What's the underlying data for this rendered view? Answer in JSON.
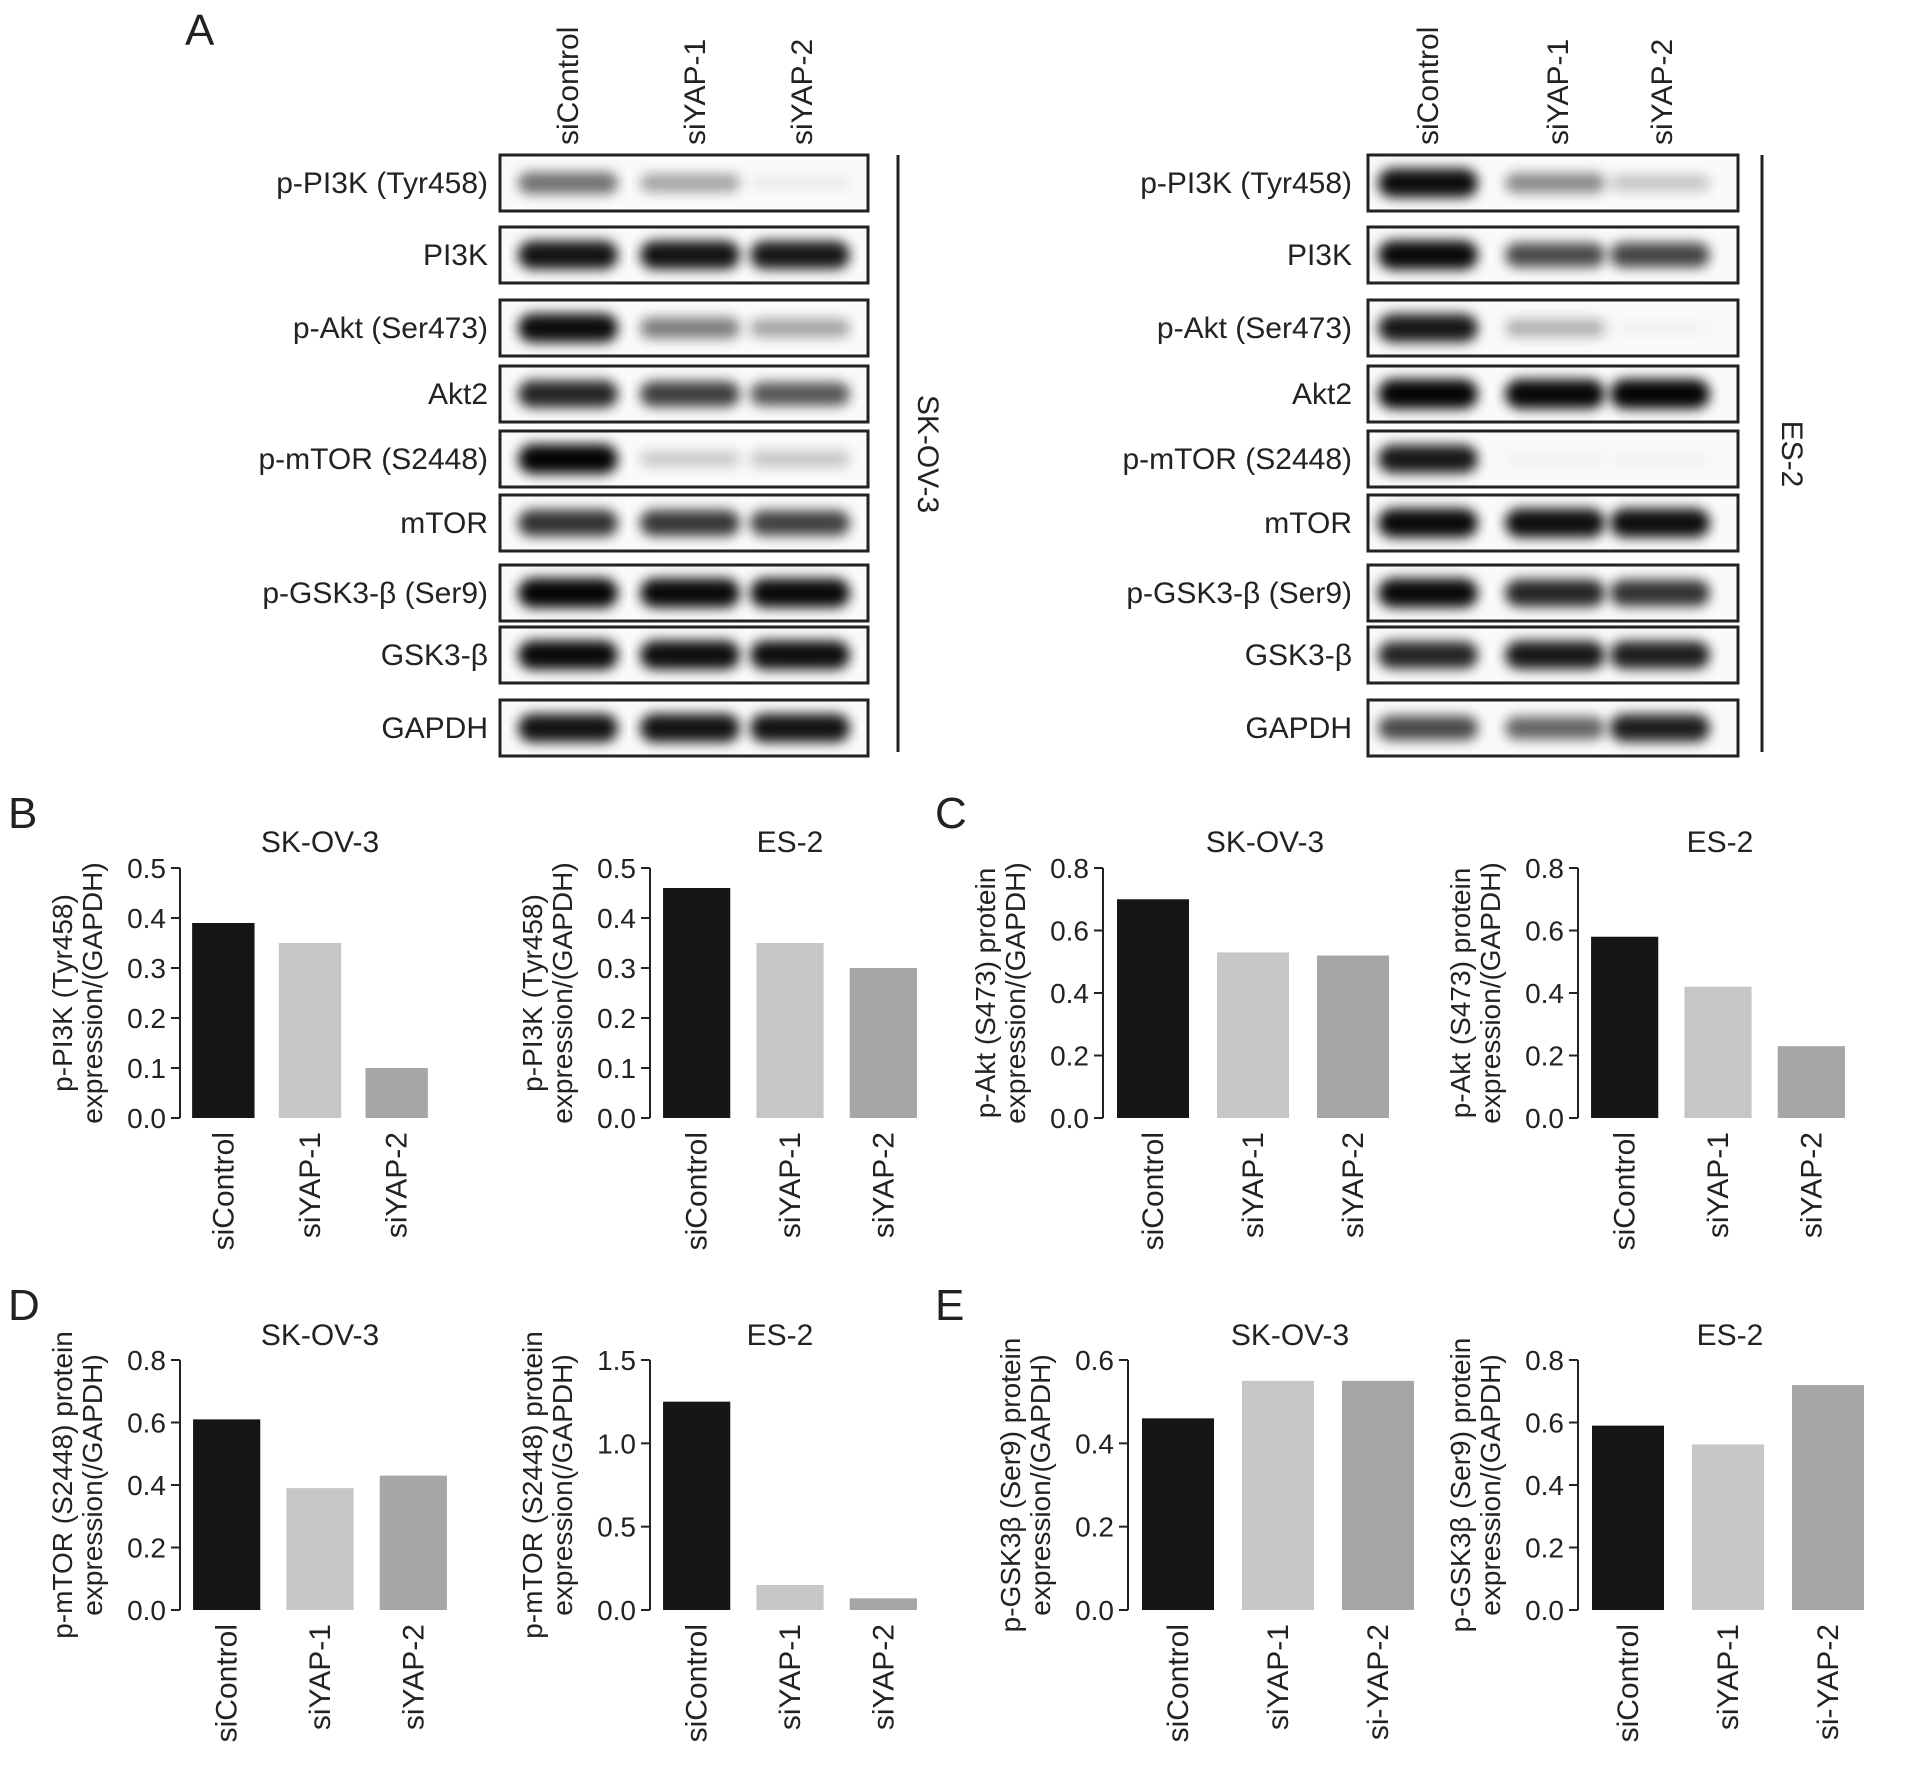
{
  "panel_letters": [
    "A",
    "B",
    "C",
    "D",
    "E"
  ],
  "blots": [
    {
      "cell_line": "SK-OV-3",
      "lanes": [
        "siControl",
        "siYAP-1",
        "siYAP-2"
      ],
      "rows": [
        "p-PI3K (Tyr458)",
        "PI3K",
        "p-Akt (Ser473)",
        "Akt2",
        "p-mTOR (S2448)",
        "mTOR",
        "p-GSK3-β (Ser9)",
        "GSK3-β",
        "GAPDH"
      ],
      "intensity": [
        [
          0.55,
          0.35,
          0.06
        ],
        [
          0.92,
          0.92,
          0.9
        ],
        [
          0.95,
          0.5,
          0.35
        ],
        [
          0.85,
          0.75,
          0.65
        ],
        [
          0.98,
          0.2,
          0.22
        ],
        [
          0.8,
          0.78,
          0.74
        ],
        [
          0.98,
          0.96,
          0.96
        ],
        [
          0.96,
          0.94,
          0.94
        ],
        [
          0.92,
          0.92,
          0.92
        ]
      ]
    },
    {
      "cell_line": "ES-2",
      "lanes": [
        "siControl",
        "siYAP-1",
        "siYAP-2"
      ],
      "rows": [
        "p-PI3K (Tyr458)",
        "PI3K",
        "p-Akt (Ser473)",
        "Akt2",
        "p-mTOR (S2448)",
        "mTOR",
        "p-GSK3-β (Ser9)",
        "GSK3-β",
        "GAPDH"
      ],
      "intensity": [
        [
          0.95,
          0.45,
          0.22
        ],
        [
          0.96,
          0.7,
          0.72
        ],
        [
          0.9,
          0.3,
          0.03
        ],
        [
          0.98,
          0.97,
          0.98
        ],
        [
          0.9,
          0.04,
          0.03
        ],
        [
          0.96,
          0.94,
          0.94
        ],
        [
          0.96,
          0.85,
          0.8
        ],
        [
          0.85,
          0.9,
          0.88
        ],
        [
          0.7,
          0.6,
          0.88
        ]
      ]
    }
  ],
  "bar_colors": [
    "#161616",
    "#c6c6c6",
    "#a6a6a6"
  ],
  "chart_data": [
    {
      "panel": "B",
      "type": "bar",
      "title": "SK-OV-3",
      "ylabel": [
        "p-PI3K (Tyr458)",
        "expression/(GAPDH)"
      ],
      "categories": [
        "siControl",
        "siYAP-1",
        "siYAP-2"
      ],
      "values": [
        0.39,
        0.35,
        0.1
      ],
      "ylim": [
        0,
        0.5
      ],
      "yticks": [
        "0.0",
        "0.1",
        "0.2",
        "0.3",
        "0.4",
        "0.5"
      ]
    },
    {
      "panel": "B",
      "type": "bar",
      "title": "ES-2",
      "ylabel": [
        "p-PI3K (Tyr458)",
        "expression/(GAPDH)"
      ],
      "categories": [
        "siControl",
        "siYAP-1",
        "siYAP-2"
      ],
      "values": [
        0.46,
        0.35,
        0.3
      ],
      "ylim": [
        0,
        0.5
      ],
      "yticks": [
        "0.0",
        "0.1",
        "0.2",
        "0.3",
        "0.4",
        "0.5"
      ]
    },
    {
      "panel": "C",
      "type": "bar",
      "title": "SK-OV-3",
      "ylabel": [
        "p-Akt (S473) protein",
        "expression/(GAPDH)"
      ],
      "categories": [
        "siControl",
        "siYAP-1",
        "siYAP-2"
      ],
      "values": [
        0.7,
        0.53,
        0.52
      ],
      "ylim": [
        0,
        0.8
      ],
      "yticks": [
        "0.0",
        "0.2",
        "0.4",
        "0.6",
        "0.8"
      ]
    },
    {
      "panel": "C",
      "type": "bar",
      "title": "ES-2",
      "ylabel": [
        "p-Akt (S473) protein",
        "expression/(GAPDH)"
      ],
      "categories": [
        "siControl",
        "siYAP-1",
        "siYAP-2"
      ],
      "values": [
        0.58,
        0.42,
        0.23
      ],
      "ylim": [
        0,
        0.8
      ],
      "yticks": [
        "0.0",
        "0.2",
        "0.4",
        "0.6",
        "0.8"
      ]
    },
    {
      "panel": "D",
      "type": "bar",
      "title": "SK-OV-3",
      "ylabel": [
        "p-mTOR (S2448) protein",
        "expression(/GAPDH)"
      ],
      "categories": [
        "siControl",
        "siYAP-1",
        "siYAP-2"
      ],
      "values": [
        0.61,
        0.39,
        0.43
      ],
      "ylim": [
        0,
        0.8
      ],
      "yticks": [
        "0.0",
        "0.2",
        "0.4",
        "0.6",
        "0.8"
      ]
    },
    {
      "panel": "D",
      "type": "bar",
      "title": "ES-2",
      "ylabel": [
        "p-mTOR (S2448) protein",
        "expression(/GAPDH)"
      ],
      "categories": [
        "siControl",
        "siYAP-1",
        "siYAP-2"
      ],
      "values": [
        1.25,
        0.15,
        0.07
      ],
      "ylim": [
        0,
        1.5
      ],
      "yticks": [
        "0.0",
        "0.5",
        "1.0",
        "1.5"
      ]
    },
    {
      "panel": "E",
      "type": "bar",
      "title": "SK-OV-3",
      "ylabel": [
        "p-GSK3β (Ser9) protein",
        "expression/(GAPDH)"
      ],
      "categories": [
        "siControl",
        "siYAP-1",
        "si-YAP-2"
      ],
      "values": [
        0.46,
        0.55,
        0.55
      ],
      "ylim": [
        0,
        0.6
      ],
      "yticks": [
        "0.0",
        "0.2",
        "0.4",
        "0.6"
      ]
    },
    {
      "panel": "E",
      "type": "bar",
      "title": "ES-2",
      "ylabel": [
        "p-GSK3β (Ser9) protein",
        "expression/(GAPDH)"
      ],
      "categories": [
        "siControl",
        "siYAP-1",
        "si-YAP-2"
      ],
      "values": [
        0.59,
        0.53,
        0.72
      ],
      "ylim": [
        0,
        0.8
      ],
      "yticks": [
        "0.0",
        "0.2",
        "0.4",
        "0.6",
        "0.8"
      ]
    }
  ]
}
